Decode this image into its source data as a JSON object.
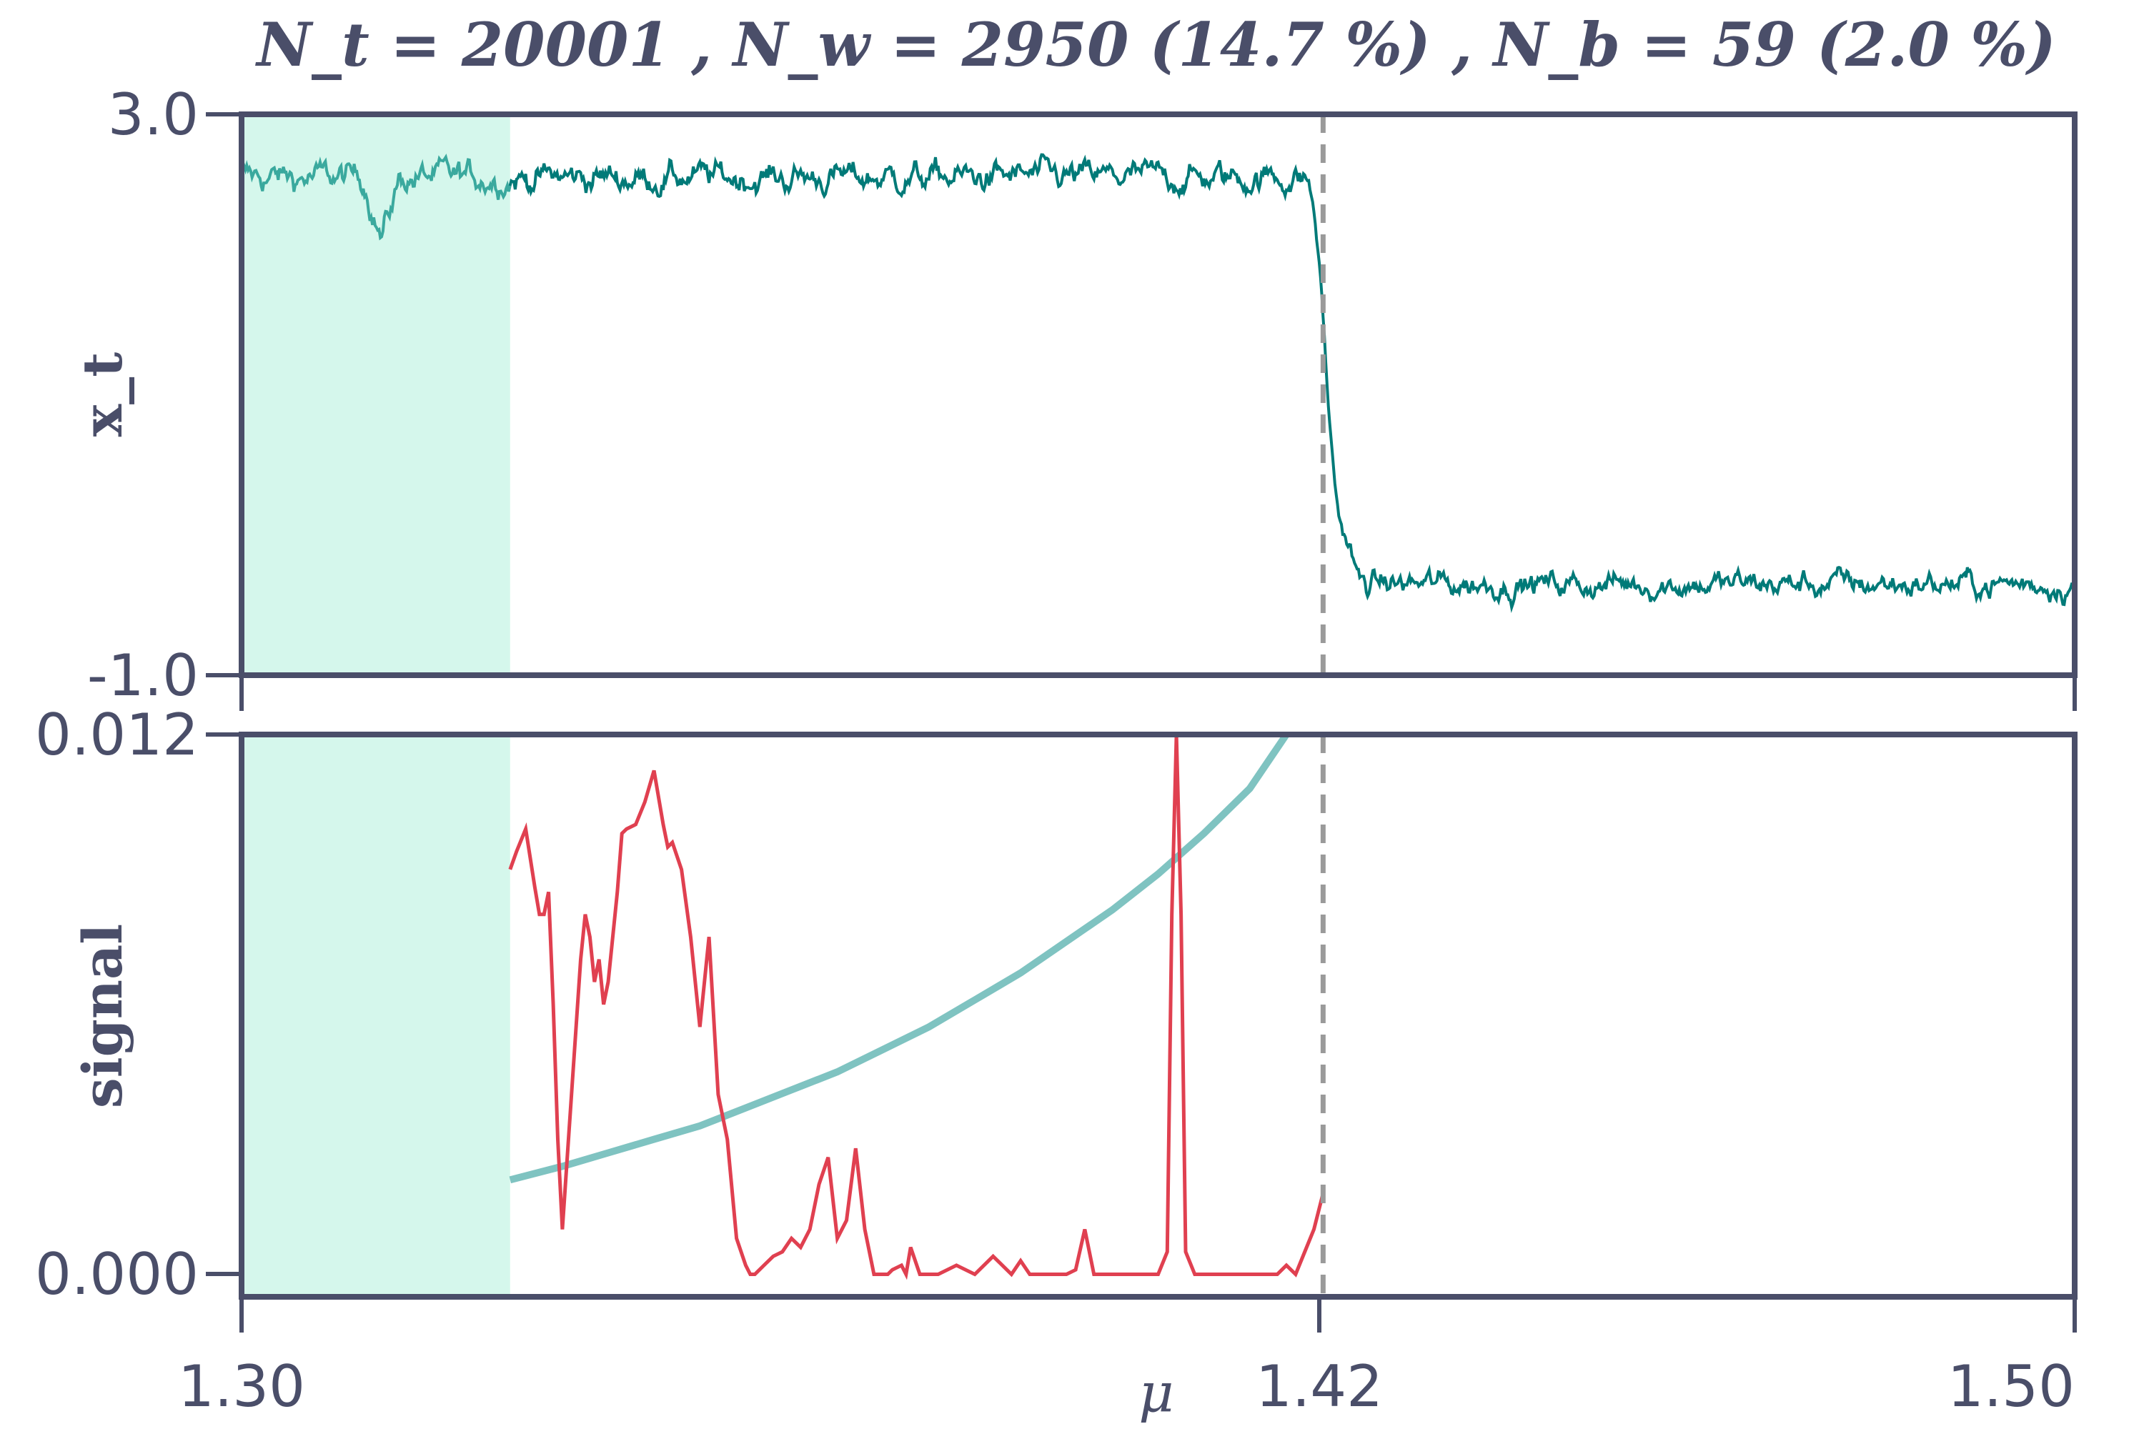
{
  "title": "N_t = 20001 ,  N_w = 2950 (14.7 %) ,  N_b = 59 (2.0 %)",
  "colors": {
    "axis": "#4a4e69",
    "trace": "#007a78",
    "trace_light": "#3aa99e",
    "window_shade": "#d5f7ec",
    "signal": "#e04050",
    "trend": "#7fc3c1",
    "threshold": "#9a9a9a"
  },
  "chart_data": [
    {
      "type": "line",
      "panel": "top",
      "ylabel": "x_t",
      "ylim": [
        -1.0,
        3.0
      ],
      "xlim": [
        1.3,
        1.5
      ],
      "yticks": [
        "3.0",
        "-1.0"
      ],
      "shaded_region": [
        1.3,
        1.3293
      ],
      "vline": 1.418,
      "series": [
        {
          "description_segments": [
            {
              "x_start": 1.3,
              "x_end": 1.416,
              "mean": 2.55,
              "noise": 0.09
            },
            {
              "x_start": 1.416,
              "x_end": 1.4205,
              "from": 2.55,
              "to": 0.0
            },
            {
              "x_start": 1.4205,
              "x_end": 1.5,
              "mean": -0.35,
              "noise": 0.08
            }
          ],
          "dip": {
            "x": 1.3153,
            "to": 2.05
          }
        }
      ]
    },
    {
      "type": "line",
      "panel": "bottom",
      "ylabel": "signal",
      "ylim": [
        -0.0005,
        0.012
      ],
      "xlim": [
        1.3,
        1.5
      ],
      "yticks": [
        "0.012",
        "0.000"
      ],
      "xticks": [
        "1.30",
        "1.42",
        "1.50"
      ],
      "xlabel": "μ",
      "shaded_region": [
        1.3,
        1.3293
      ],
      "vline": 1.418,
      "series": [
        {
          "name": "",
          "x": [
            1.3293,
            1.33,
            1.331,
            1.332,
            1.3325,
            1.333,
            1.3335,
            1.334,
            1.3345,
            1.335,
            1.336,
            1.337,
            1.3375,
            1.338,
            1.3385,
            1.339,
            1.3395,
            1.34,
            1.341,
            1.3415,
            1.342,
            1.343,
            1.344,
            1.345,
            1.346,
            1.3465,
            1.347,
            1.348,
            1.349,
            1.35,
            1.351,
            1.352,
            1.353,
            1.354,
            1.355,
            1.3555,
            1.356,
            1.357,
            1.358,
            1.359,
            1.36,
            1.361,
            1.362,
            1.363,
            1.364,
            1.365,
            1.366,
            1.367,
            1.368,
            1.369,
            1.37,
            1.3705,
            1.371,
            1.372,
            1.3725,
            1.373,
            1.374,
            1.375,
            1.376,
            1.378,
            1.38,
            1.382,
            1.384,
            1.385,
            1.386,
            1.387,
            1.39,
            1.391,
            1.392,
            1.393,
            1.395,
            1.396,
            1.397,
            1.398,
            1.4,
            1.401,
            1.4015,
            1.402,
            1.4025,
            1.403,
            1.404,
            1.406,
            1.41,
            1.413,
            1.414,
            1.415,
            1.416,
            1.417,
            1.418
          ],
          "values": [
            0.009,
            0.0094,
            0.0099,
            0.0086,
            0.008,
            0.008,
            0.0085,
            0.006,
            0.003,
            0.001,
            0.004,
            0.007,
            0.008,
            0.0075,
            0.0065,
            0.007,
            0.006,
            0.0065,
            0.0085,
            0.0098,
            0.0099,
            0.01,
            0.0105,
            0.0112,
            0.01,
            0.0095,
            0.0096,
            0.009,
            0.0075,
            0.0055,
            0.0075,
            0.004,
            0.003,
            0.0008,
            0.0002,
            0.0,
            0.0,
            0.0002,
            0.0004,
            0.0005,
            0.0008,
            0.0006,
            0.001,
            0.002,
            0.0026,
            0.0008,
            0.0012,
            0.0028,
            0.001,
            0.0,
            0.0,
            0.0,
            0.0001,
            0.0002,
            0.0,
            0.0006,
            0.0,
            0.0,
            0.0,
            0.0002,
            0.0,
            0.0004,
            0.0,
            0.0003,
            0.0,
            0.0,
            0.0,
            0.0001,
            0.001,
            0.0,
            0.0,
            0.0,
            0.0,
            0.0,
            0.0,
            0.0005,
            0.008,
            0.012,
            0.008,
            0.0005,
            0.0,
            0.0,
            0.0,
            0.0,
            0.0002,
            0.0,
            0.0005,
            0.001,
            0.0018
          ]
        },
        {
          "name": "",
          "x": [
            1.3293,
            1.335,
            1.34,
            1.345,
            1.35,
            1.355,
            1.36,
            1.365,
            1.37,
            1.375,
            1.38,
            1.385,
            1.39,
            1.395,
            1.4,
            1.405,
            1.41,
            1.414
          ],
          "values": [
            0.0021,
            0.0024,
            0.0027,
            0.003,
            0.0033,
            0.0037,
            0.0041,
            0.0045,
            0.005,
            0.0055,
            0.0061,
            0.0067,
            0.0074,
            0.0081,
            0.0089,
            0.0098,
            0.0108,
            0.012
          ]
        }
      ]
    }
  ]
}
